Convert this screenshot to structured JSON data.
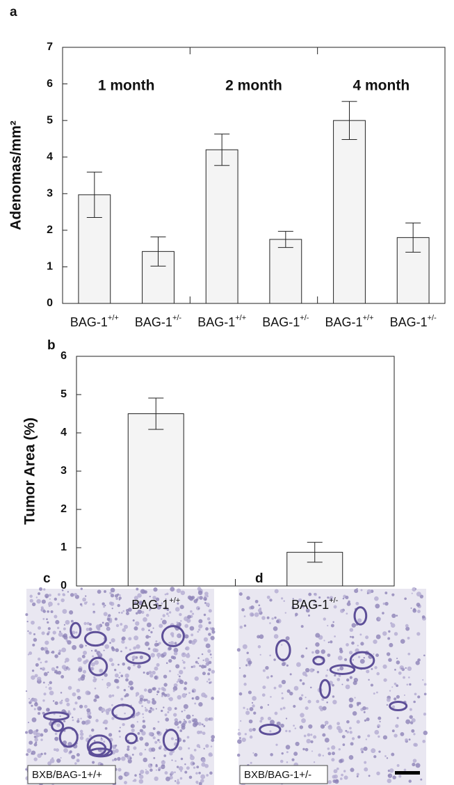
{
  "chart_data": [
    {
      "type": "bar",
      "panel_label": "a",
      "ylabel": "Adenomas/mm²",
      "categories": [
        "BAG-1+/+",
        "BAG-1+/-",
        "BAG-1+/+",
        "BAG-1+/-",
        "BAG-1+/+",
        "BAG-1+/-"
      ],
      "annotations": [
        "1 month",
        "2 month",
        "4 month"
      ],
      "values": [
        2.97,
        1.42,
        4.2,
        1.75,
        5.0,
        1.8
      ],
      "errors": [
        0.62,
        0.4,
        0.43,
        0.22,
        0.52,
        0.4
      ],
      "color": "#f4f4f4",
      "ylim": [
        0,
        7
      ],
      "yticks": [
        0,
        1,
        2,
        3,
        4,
        5,
        6,
        7
      ]
    },
    {
      "type": "bar",
      "panel_label": "b",
      "ylabel": "Tumor Area (%)",
      "categories": [
        "BAG-1+/+",
        "BAG-1+/-"
      ],
      "values": [
        4.5,
        0.88
      ],
      "errors": [
        0.41,
        0.26
      ],
      "color": "#f4f4f4",
      "ylim": [
        0,
        6
      ],
      "yticks": [
        0,
        1,
        2,
        3,
        4,
        5,
        6
      ]
    }
  ],
  "panels": [
    {
      "label": "c",
      "caption": "BXB/BAG-1+/+"
    },
    {
      "label": "d",
      "caption": "BXB/BAG-1+/-"
    }
  ]
}
